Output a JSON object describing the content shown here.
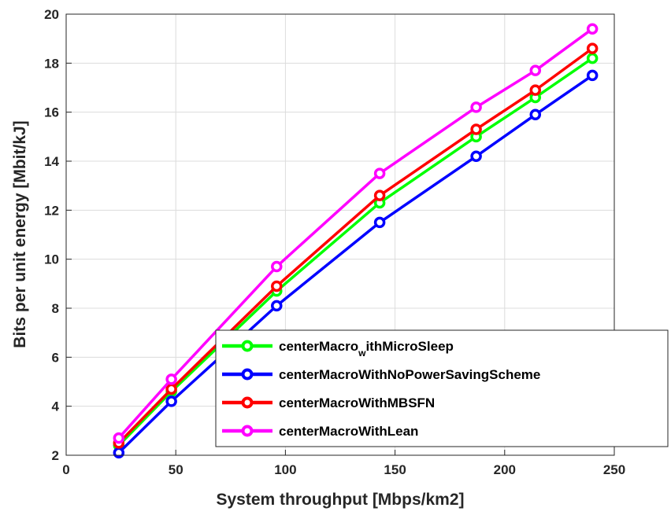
{
  "chart_data": {
    "type": "line",
    "xlabel": "System throughput [Mbps/km2]",
    "ylabel": "Bits per unit energy [Mbit/kJ]",
    "xlim": [
      0,
      250
    ],
    "ylim": [
      2,
      20
    ],
    "xticks": [
      0,
      50,
      100,
      150,
      200,
      250
    ],
    "yticks": [
      2,
      4,
      6,
      8,
      10,
      12,
      14,
      16,
      18,
      20
    ],
    "xtick_labels": [
      "0",
      "50",
      "100",
      "150",
      "200",
      "250"
    ],
    "ytick_labels": [
      "2",
      "4",
      "6",
      "8",
      "10",
      "12",
      "14",
      "16",
      "18",
      "20"
    ],
    "grid": true,
    "legend_position": "bottom-right",
    "x": [
      24,
      48,
      96,
      143,
      187,
      214,
      240
    ],
    "series": [
      {
        "name": "centerMacro",
        "name_sub": "w",
        "name_rest": "ithMicroSleep",
        "color": "#00ff00",
        "values": [
          2.4,
          4.6,
          8.7,
          12.3,
          15.0,
          16.6,
          18.2
        ]
      },
      {
        "name": "centerMacroWithNoPowerSavingScheme",
        "color": "#0000ff",
        "values": [
          2.1,
          4.2,
          8.1,
          11.5,
          14.2,
          15.9,
          17.5
        ]
      },
      {
        "name": "centerMacroWithMBSFN",
        "color": "#ff0000",
        "values": [
          2.5,
          4.7,
          8.9,
          12.6,
          15.3,
          16.9,
          18.6
        ]
      },
      {
        "name": "centerMacroWithLean",
        "color": "#ff00ff",
        "values": [
          2.7,
          5.1,
          9.7,
          13.5,
          16.2,
          17.7,
          19.4
        ]
      }
    ]
  }
}
